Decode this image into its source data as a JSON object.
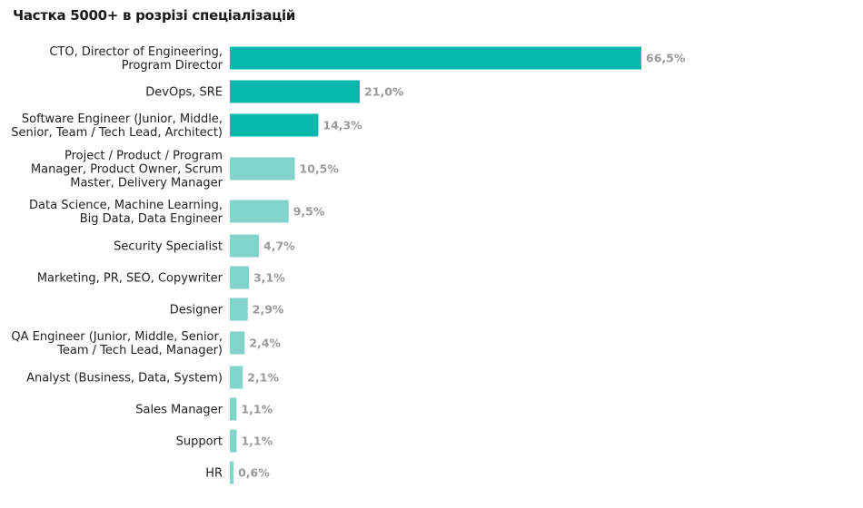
{
  "chart_data": {
    "type": "bar",
    "orientation": "horizontal",
    "title": "Частка 5000+ в розрізі спеціалізацій",
    "xlim": [
      0,
      66.5
    ],
    "grid": false,
    "colors": {
      "highlight": "#08b8ac",
      "normal": "#82d3cc"
    },
    "categories": [
      [
        "CTO, Director of Engineering,",
        "Program Director"
      ],
      [
        "DevOps, SRE"
      ],
      [
        "Software Engineer (Junior, Middle,",
        "Senior, Team / Tech Lead, Architect)"
      ],
      [
        "Project / Product / Program",
        "Manager, Product Owner, Scrum",
        "Master, Delivery Manager"
      ],
      [
        "Data Science, Machine Learning,",
        "Big Data, Data Engineer"
      ],
      [
        "Security Specialist"
      ],
      [
        "Marketing, PR, SEO, Copywriter"
      ],
      [
        "Designer"
      ],
      [
        "QA Engineer (Junior, Middle, Senior,",
        "Team / Tech Lead, Manager)"
      ],
      [
        "Analyst (Business, Data, System)"
      ],
      [
        "Sales Manager"
      ],
      [
        "Support"
      ],
      [
        "HR"
      ]
    ],
    "values": [
      66.5,
      21.0,
      14.3,
      10.5,
      9.5,
      4.7,
      3.1,
      2.9,
      2.4,
      2.1,
      1.1,
      1.1,
      0.6
    ],
    "value_labels": [
      "66,5%",
      "21,0%",
      "14,3%",
      "10,5%",
      "9,5%",
      "4,7%",
      "3,1%",
      "2,9%",
      "2,4%",
      "2,1%",
      "1,1%",
      "1,1%",
      "0,6%"
    ],
    "highlighted": [
      true,
      true,
      true,
      false,
      false,
      false,
      false,
      false,
      false,
      false,
      false,
      false,
      false
    ]
  }
}
